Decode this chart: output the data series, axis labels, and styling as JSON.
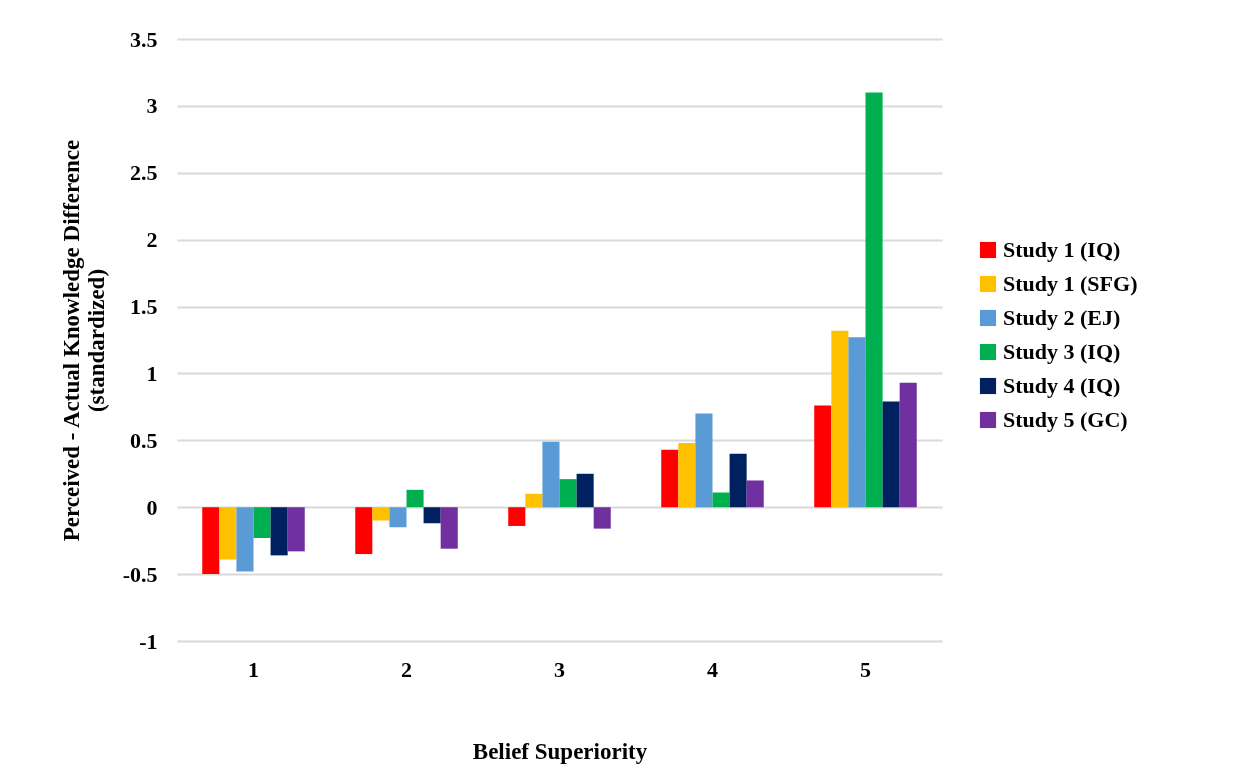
{
  "chart_data": {
    "type": "bar",
    "xlabel": "Belief Superiority",
    "ylabel": "Perceived - Actual Knowledge Difference (standardized)",
    "categories": [
      "1",
      "2",
      "3",
      "4",
      "5"
    ],
    "series": [
      {
        "name": "Study 1 (IQ)",
        "color": "#ff0000",
        "values": [
          -0.5,
          -0.35,
          -0.14,
          0.43,
          0.76
        ]
      },
      {
        "name": "Study 1 (SFG)",
        "color": "#ffc000",
        "values": [
          -0.39,
          -0.1,
          0.1,
          0.48,
          1.32
        ]
      },
      {
        "name": "Study 2 (EJ)",
        "color": "#5b9bd5",
        "values": [
          -0.48,
          -0.15,
          0.49,
          0.7,
          1.27
        ]
      },
      {
        "name": "Study 3 (IQ)",
        "color": "#00b050",
        "values": [
          -0.23,
          0.13,
          0.21,
          0.11,
          3.1
        ]
      },
      {
        "name": "Study 4 (IQ)",
        "color": "#002060",
        "values": [
          -0.36,
          -0.12,
          0.25,
          0.4,
          0.79
        ]
      },
      {
        "name": "Study 5 (GC)",
        "color": "#7030a0",
        "values": [
          -0.33,
          -0.31,
          -0.16,
          0.2,
          0.93
        ]
      }
    ],
    "ylim": [
      -1,
      3.5
    ],
    "yticks": [
      -1,
      -0.5,
      0,
      0.5,
      1,
      1.5,
      2,
      2.5,
      3,
      3.5
    ],
    "grid": "y",
    "legend": "right"
  }
}
